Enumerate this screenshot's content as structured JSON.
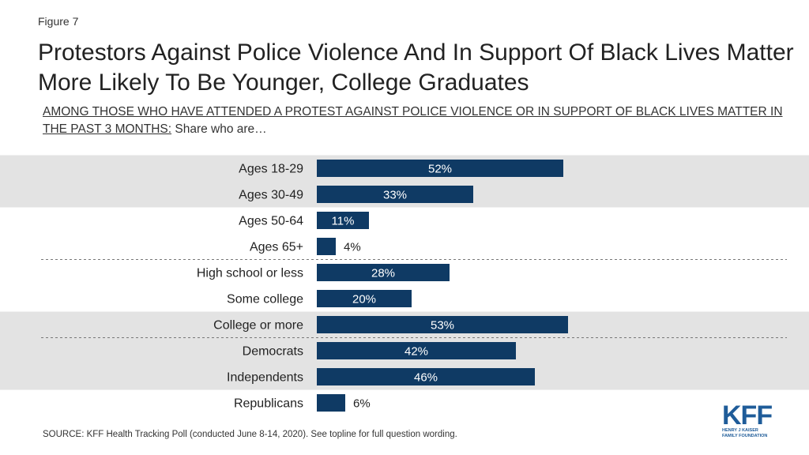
{
  "figure_label": "Figure 7",
  "title": "Protestors Against Police Violence And In Support Of Black Lives Matter More Likely To Be Younger, College Graduates",
  "subtitle": {
    "underlined": "AMONG THOSE WHO HAVE ATTENDED A PROTEST AGAINST POLICE VIOLENCE OR IN SUPPORT OF BLACK LIVES MATTER IN THE PAST 3 MONTHS:",
    "rest": " Share who are…"
  },
  "source": "SOURCE: KFF Health Tracking Poll (conducted June 8-14, 2020). See topline for full question wording.",
  "logo": {
    "mark": "KFF",
    "line1": "HENRY J KAISER",
    "line2": "FAMILY FOUNDATION"
  },
  "colors": {
    "bar": "#0f3a64",
    "band": "#e3e3e3",
    "label_inside": "#ffffff",
    "label_outside": "#222222"
  },
  "chart_data": {
    "type": "bar",
    "orientation": "horizontal",
    "categories": [
      "Ages 18-29",
      "Ages 30-49",
      "Ages 50-64",
      "Ages 65+",
      "High school or less",
      "Some college",
      "College or more",
      "Democrats",
      "Independents",
      "Republicans"
    ],
    "values": [
      52,
      33,
      11,
      4,
      28,
      20,
      53,
      42,
      46,
      6
    ],
    "value_labels": [
      "52%",
      "33%",
      "11%",
      "4%",
      "28%",
      "20%",
      "53%",
      "42%",
      "46%",
      "6%"
    ],
    "highlighted": [
      true,
      true,
      false,
      false,
      false,
      false,
      true,
      true,
      true,
      false
    ],
    "group_separators_after": [
      3,
      6
    ],
    "xlim": [
      0,
      100
    ],
    "grid": false,
    "legend": "none"
  }
}
